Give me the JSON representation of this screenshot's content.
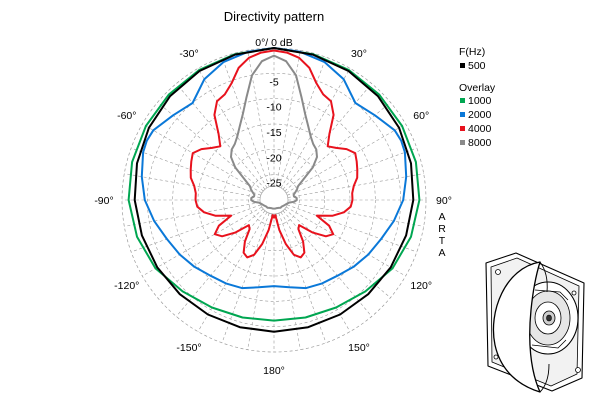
{
  "chart_data": {
    "type": "polar-line",
    "title": "Directivity pattern",
    "r_axis": {
      "ticks": [
        "0°/ 0 dB",
        "-5",
        "-10",
        "-15",
        "-20",
        "-25"
      ],
      "range_db": [
        -30,
        0
      ]
    },
    "angle_ticks": [
      {
        "deg": -30,
        "label": "-30°"
      },
      {
        "deg": 30,
        "label": "30°"
      },
      {
        "deg": -60,
        "label": "-60°"
      },
      {
        "deg": 60,
        "label": "60°"
      },
      {
        "deg": -90,
        "label": "-90°"
      },
      {
        "deg": 90,
        "label": "90°"
      },
      {
        "deg": -120,
        "label": "-120°"
      },
      {
        "deg": 120,
        "label": "120°"
      },
      {
        "deg": -150,
        "label": "-150°"
      },
      {
        "deg": 150,
        "label": "150°"
      },
      {
        "deg": 180,
        "label": "180°"
      }
    ],
    "legend": {
      "header": "F(Hz)",
      "overlay_header": "Overlay",
      "primary": {
        "name": "500",
        "color": "#000000"
      },
      "overlays": [
        {
          "name": "1000",
          "color": "#00a651"
        },
        {
          "name": "2000",
          "color": "#0a78d8"
        },
        {
          "name": "4000",
          "color": "#e8121d"
        },
        {
          "name": "8000",
          "color": "#8a8a8a"
        }
      ]
    },
    "series": [
      {
        "name": "500",
        "color": "#000000",
        "angles": [
          0,
          15,
          30,
          45,
          60,
          75,
          90,
          105,
          120,
          135,
          150,
          165,
          180,
          195,
          210,
          225,
          240,
          255,
          270,
          285,
          300,
          315,
          330,
          345
        ],
        "values_db": [
          0,
          -0.3,
          -0.6,
          -1.0,
          -1.5,
          -2.0,
          -2.5,
          -3.0,
          -3.4,
          -3.7,
          -3.9,
          -4.0,
          -4.0,
          -4.0,
          -3.9,
          -3.7,
          -3.4,
          -3.0,
          -2.5,
          -2.0,
          -1.5,
          -1.0,
          -0.6,
          -0.3
        ]
      },
      {
        "name": "1000",
        "color": "#00a651",
        "angles": [
          0,
          15,
          30,
          45,
          60,
          75,
          90,
          105,
          120,
          135,
          150,
          165,
          180,
          195,
          210,
          225,
          240,
          255,
          270,
          285,
          300,
          315,
          330,
          345
        ],
        "values_db": [
          0,
          -0.2,
          -0.4,
          -0.6,
          -0.8,
          -1.0,
          -1.3,
          -2.0,
          -3.0,
          -4.5,
          -5.5,
          -6.0,
          -6.2,
          -6.0,
          -5.5,
          -4.5,
          -3.0,
          -2.0,
          -1.3,
          -1.0,
          -0.8,
          -0.6,
          -0.4,
          -0.2
        ]
      },
      {
        "name": "2000",
        "color": "#0a78d8",
        "angles": [
          0,
          10,
          20,
          30,
          40,
          50,
          60,
          65,
          70,
          80,
          90,
          100,
          110,
          120,
          130,
          140,
          150,
          160,
          170,
          180,
          190,
          200,
          210,
          220,
          230,
          240,
          250,
          260,
          270,
          280,
          290,
          295,
          300,
          310,
          320,
          330,
          340,
          350
        ],
        "values_db": [
          0,
          -0.3,
          -1.0,
          -2.5,
          -5.0,
          -4.0,
          -2.5,
          -2.3,
          -2.5,
          -3.5,
          -4.5,
          -6.0,
          -7.5,
          -8.5,
          -9.5,
          -10.5,
          -11.0,
          -11.5,
          -12.5,
          -13.0,
          -12.5,
          -11.5,
          -11.0,
          -10.5,
          -9.5,
          -8.5,
          -7.5,
          -6.0,
          -4.5,
          -3.5,
          -2.5,
          -2.3,
          -2.5,
          -4.0,
          -5.0,
          -2.5,
          -1.0,
          -0.3
        ]
      },
      {
        "name": "4000",
        "color": "#e8121d",
        "angles": [
          0,
          5,
          10,
          15,
          20,
          25,
          30,
          35,
          40,
          45,
          50,
          55,
          60,
          65,
          70,
          75,
          80,
          85,
          90,
          95,
          100,
          105,
          110,
          115,
          120,
          125,
          130,
          135,
          140,
          145,
          150,
          155,
          160,
          165,
          170,
          175,
          180,
          185,
          190,
          195,
          200,
          205,
          210,
          215,
          220,
          225,
          230,
          235,
          240,
          245,
          250,
          255,
          260,
          265,
          270,
          275,
          280,
          285,
          290,
          295,
          300,
          305,
          310,
          315,
          320,
          325,
          330,
          335,
          340,
          345,
          350,
          355
        ],
        "values_db": [
          -0.5,
          -0.8,
          -1.5,
          -3.0,
          -5.5,
          -7.0,
          -7.5,
          -9.5,
          -13.0,
          -15.0,
          -14.0,
          -12.5,
          -11.5,
          -12.0,
          -12.5,
          -13.0,
          -14.0,
          -14.5,
          -14.5,
          -14.8,
          -16.0,
          -18.0,
          -21.0,
          -18.0,
          -16.5,
          -17.5,
          -20.0,
          -23.0,
          -22.5,
          -20.0,
          -18.0,
          -17.5,
          -18.5,
          -21.0,
          -24.0,
          -27.0,
          -26.5,
          -27.0,
          -24.0,
          -21.0,
          -18.5,
          -17.5,
          -18.0,
          -20.0,
          -22.5,
          -23.0,
          -20.0,
          -17.5,
          -16.5,
          -18.0,
          -21.0,
          -18.0,
          -16.0,
          -14.8,
          -14.5,
          -14.5,
          -14.0,
          -13.0,
          -12.5,
          -12.0,
          -11.5,
          -12.5,
          -14.0,
          -15.0,
          -13.0,
          -9.5,
          -7.5,
          -7.0,
          -5.5,
          -3.0,
          -1.5,
          -0.8
        ]
      },
      {
        "name": "8000",
        "color": "#8a8a8a",
        "angles": [
          0,
          5,
          10,
          15,
          20,
          25,
          30,
          35,
          40,
          45,
          50,
          55,
          60,
          65,
          70,
          75,
          80,
          85,
          90,
          95,
          100,
          110,
          120,
          130,
          140,
          150,
          160,
          170,
          180,
          190,
          200,
          210,
          220,
          230,
          240,
          250,
          260,
          265,
          270,
          275,
          280,
          285,
          290,
          295,
          300,
          305,
          310,
          315,
          320,
          325,
          330,
          335,
          340,
          345,
          350,
          355
        ],
        "values_db": [
          -1.5,
          -2.5,
          -5.0,
          -9.0,
          -12.0,
          -14.0,
          -15.5,
          -16.5,
          -17.0,
          -18.0,
          -20.0,
          -23.0,
          -24.5,
          -25.0,
          -25.5,
          -26.0,
          -26.0,
          -25.5,
          -25.5,
          -26.0,
          -27.0,
          -27.5,
          -27.8,
          -28.0,
          -28.0,
          -28.2,
          -28.3,
          -28.3,
          -28.3,
          -28.3,
          -28.3,
          -28.2,
          -28.0,
          -28.0,
          -27.8,
          -27.5,
          -27.0,
          -26.0,
          -25.5,
          -25.5,
          -26.0,
          -26.0,
          -25.5,
          -25.0,
          -24.5,
          -23.0,
          -20.0,
          -18.0,
          -17.0,
          -16.5,
          -15.5,
          -14.0,
          -12.0,
          -9.0,
          -5.0,
          -2.5
        ]
      }
    ]
  },
  "watermark": "ARTA",
  "product_illustration": {
    "icon": "speaker-cutaway-drawing"
  }
}
